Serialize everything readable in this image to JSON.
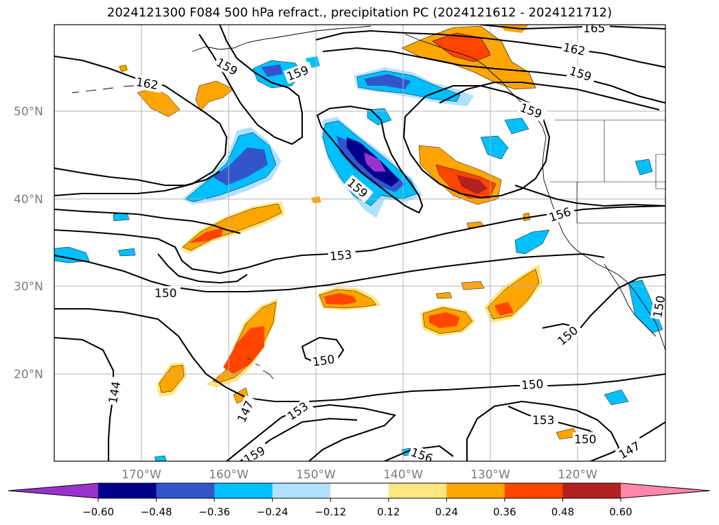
{
  "title": "2024121300 F084 500 hPa refract., precipitation PC (2024121612 - 2024121712)",
  "lat_labels": [
    "50°N",
    "40°N",
    "30°N",
    "20°N"
  ],
  "lon_labels": [
    "170°W",
    "160°W",
    "150°W",
    "140°W",
    "130°W",
    "120°W"
  ],
  "colorbar": {
    "ticks": [
      "−0.60",
      "−0.48",
      "−0.36",
      "−0.24",
      "−0.12",
      "0.12",
      "0.24",
      "0.36",
      "0.48",
      "0.60"
    ],
    "colors": [
      "#9933cc",
      "#00008b",
      "#3355cc",
      "#00bfff",
      "#b0e2ff",
      "#ffffff",
      "#ffe680",
      "#ffa500",
      "#ff4500",
      "#b22222",
      "#ff88aa"
    ]
  },
  "contour_labels": [
    "165",
    "162",
    "159",
    "159",
    "162",
    "159",
    "159",
    "159",
    "156",
    "153",
    "150",
    "150",
    "150",
    "150",
    "150",
    "153",
    "147",
    "144",
    "147",
    "153",
    "159",
    "156",
    "150",
    "150"
  ],
  "colors": {
    "positive_light": "#ffe680",
    "positive_mid": "#ffa500",
    "positive_high": "#ff4500",
    "positive_max": "#b22222",
    "negative_light": "#b0e2ff",
    "negative_mid": "#00bfff",
    "negative_high": "#3355cc",
    "negative_max": "#00008b",
    "negative_extreme": "#9933cc"
  }
}
